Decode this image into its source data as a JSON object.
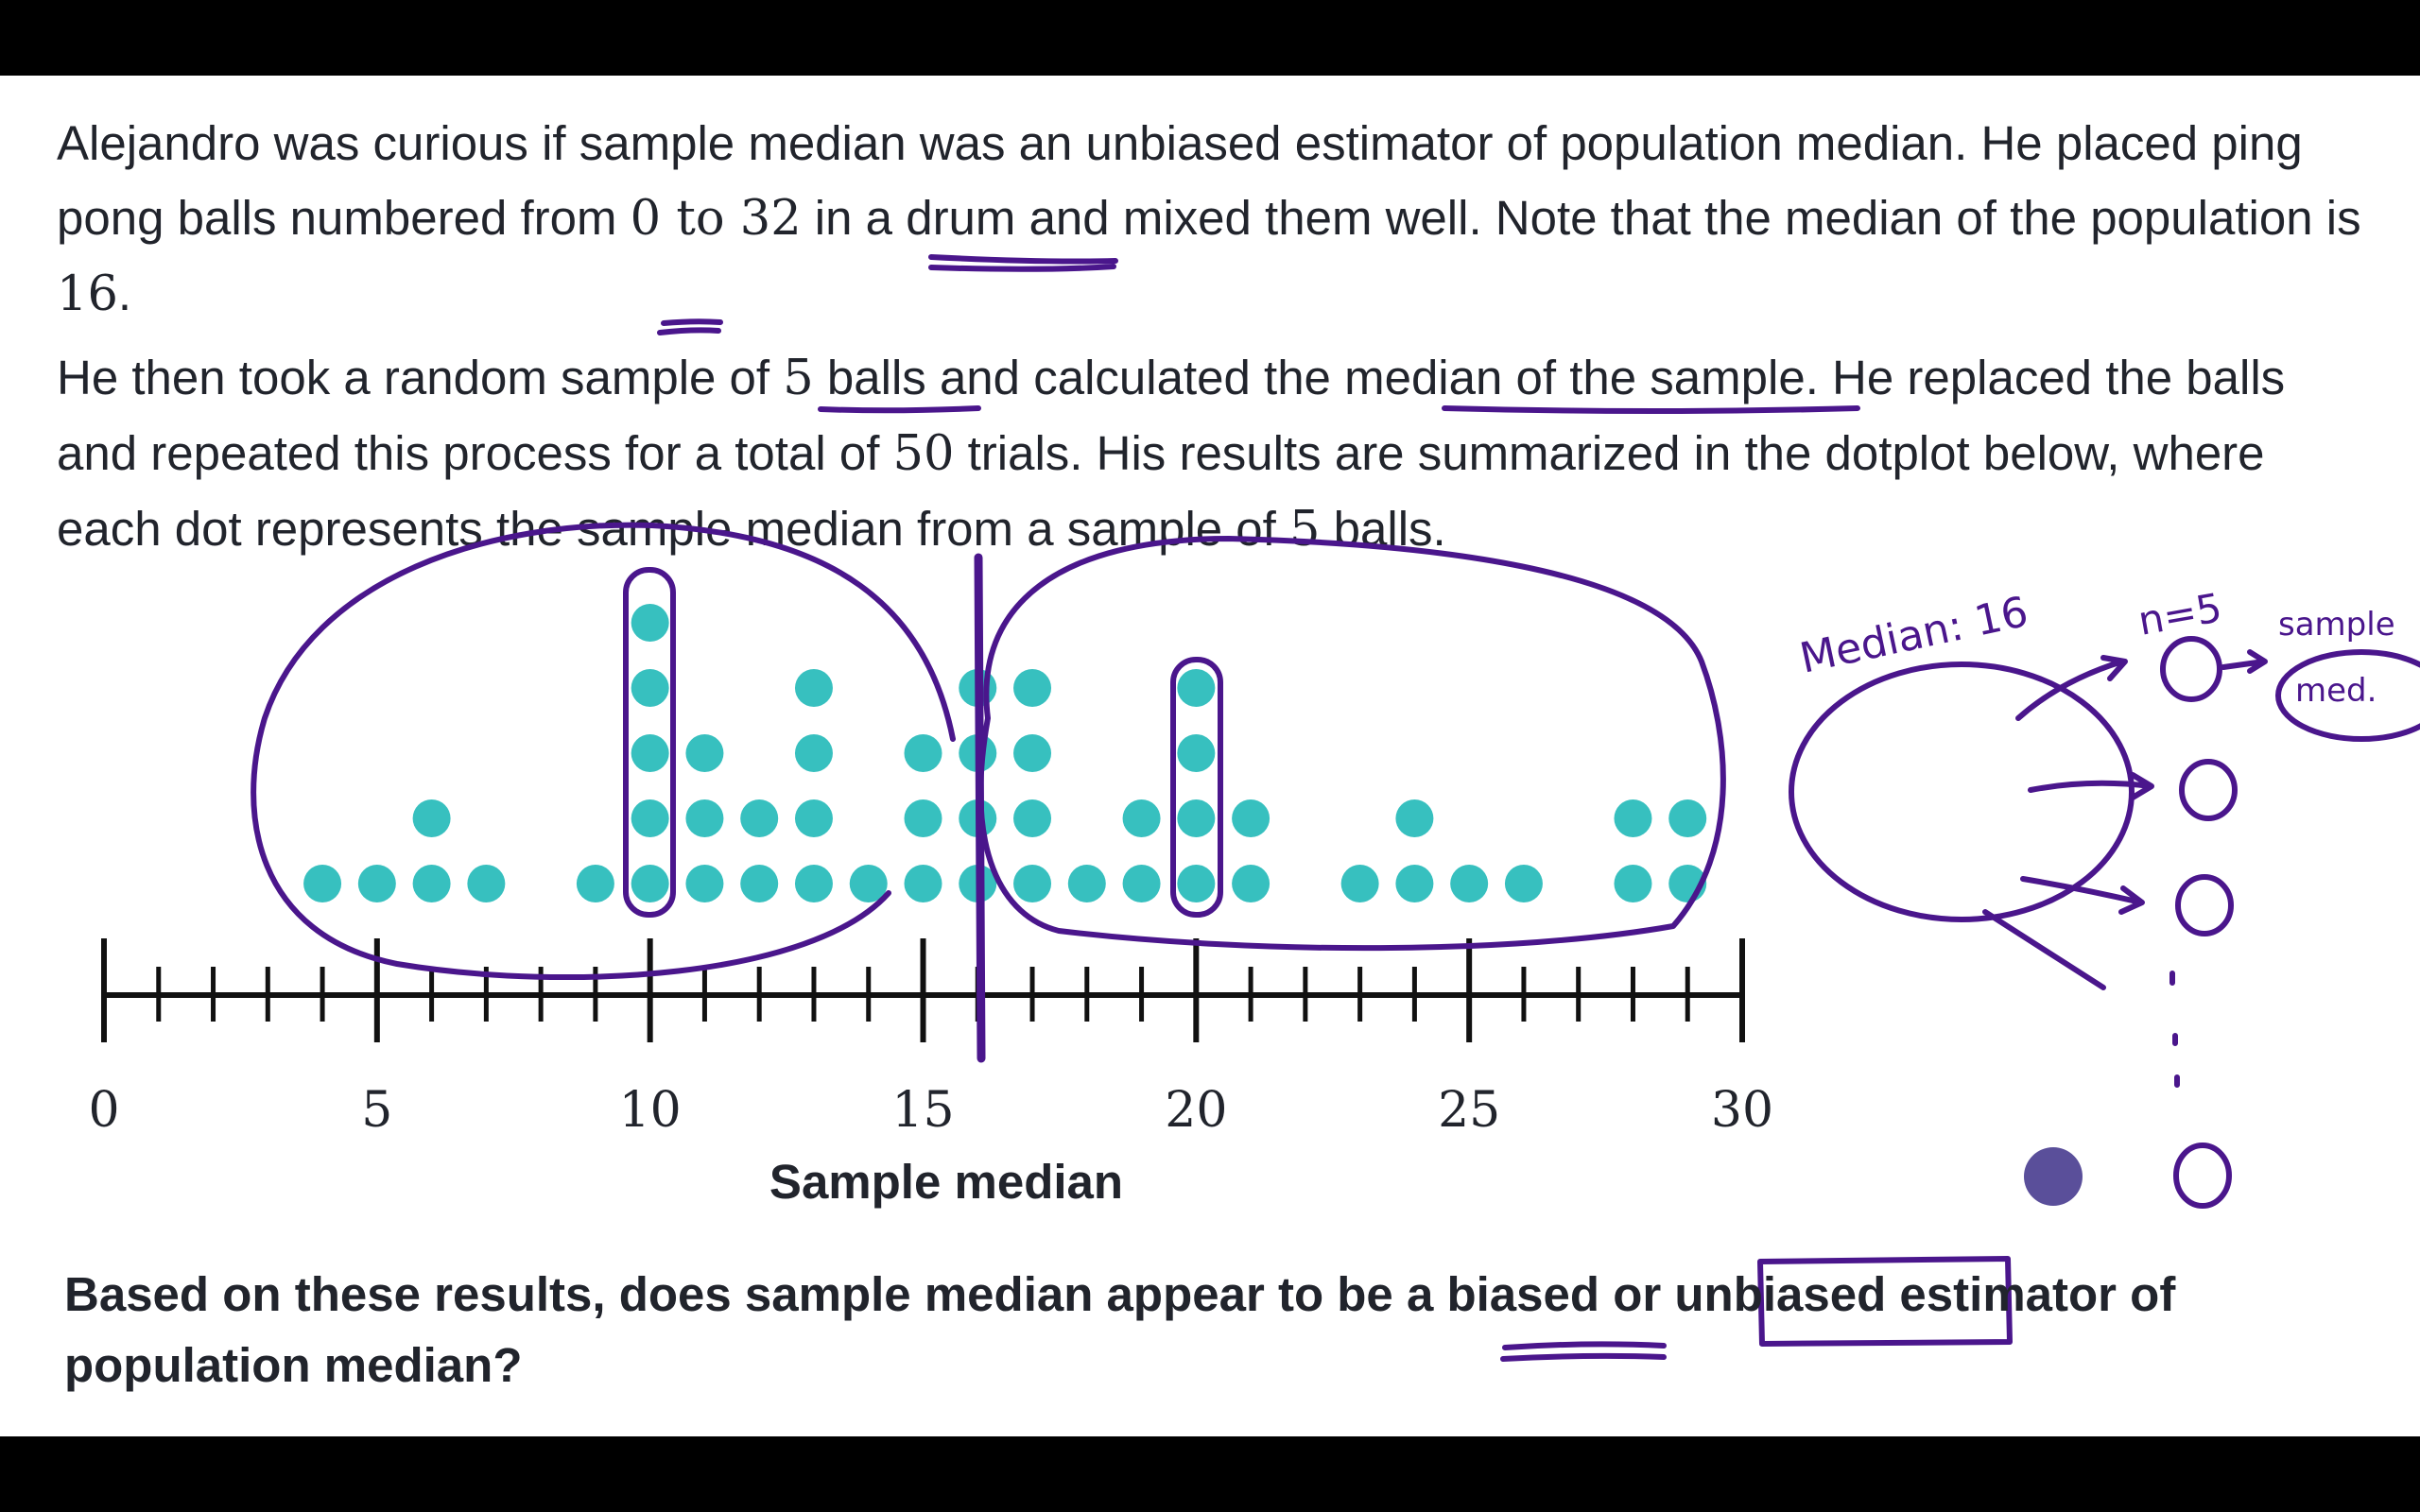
{
  "problem": {
    "p1_a": "Alejandro was curious if sample median was an unbiased estimator of population median. He placed ping pong balls numbered from ",
    "p1_range": "0 to 32",
    "p1_b": " in a drum and mixed them well. Note that the median of the population is ",
    "p1_median": "16",
    "p1_c": ".",
    "p2_a": "He then took a random sample of ",
    "p2_n1": "5",
    "p2_b": " balls and calculated the median of the sample. He replaced the balls and repeated this process for a total of ",
    "p2_trials": "50",
    "p2_c": " trials. His results are summarized in the dotplot below, where each dot represents the sample median from a sample of ",
    "p2_n2": "5",
    "p2_d": " balls."
  },
  "question": {
    "text": "Based on these results, does sample median appear to be a biased or unbiased estimator of population median?"
  },
  "annotations": {
    "median_note": "Median: 16",
    "n_note": "n=5",
    "sample_med_note": "sample med."
  },
  "colors": {
    "dot": "#37c0bf",
    "ink": "#4a168c",
    "pen_cursor": "#5a4f9a",
    "text": "#21242c"
  },
  "chart_data": {
    "type": "dotplot",
    "xlabel": "Sample median",
    "xlim": [
      0,
      30
    ],
    "major_ticks": [
      0,
      5,
      10,
      15,
      20,
      25,
      30
    ],
    "minor_tick_step": 1,
    "points": [
      {
        "x": 4,
        "count": 1
      },
      {
        "x": 5,
        "count": 1
      },
      {
        "x": 6,
        "count": 2
      },
      {
        "x": 7,
        "count": 1
      },
      {
        "x": 9,
        "count": 1
      },
      {
        "x": 10,
        "count": 5
      },
      {
        "x": 11,
        "count": 3
      },
      {
        "x": 12,
        "count": 2
      },
      {
        "x": 13,
        "count": 4
      },
      {
        "x": 14,
        "count": 1
      },
      {
        "x": 15,
        "count": 3
      },
      {
        "x": 16,
        "count": 4
      },
      {
        "x": 17,
        "count": 4
      },
      {
        "x": 18,
        "count": 1
      },
      {
        "x": 19,
        "count": 2
      },
      {
        "x": 20,
        "count": 4
      },
      {
        "x": 21,
        "count": 2
      },
      {
        "x": 23,
        "count": 1
      },
      {
        "x": 24,
        "count": 2
      },
      {
        "x": 25,
        "count": 1
      },
      {
        "x": 26,
        "count": 1
      },
      {
        "x": 28,
        "count": 2
      },
      {
        "x": 29,
        "count": 2
      }
    ]
  }
}
